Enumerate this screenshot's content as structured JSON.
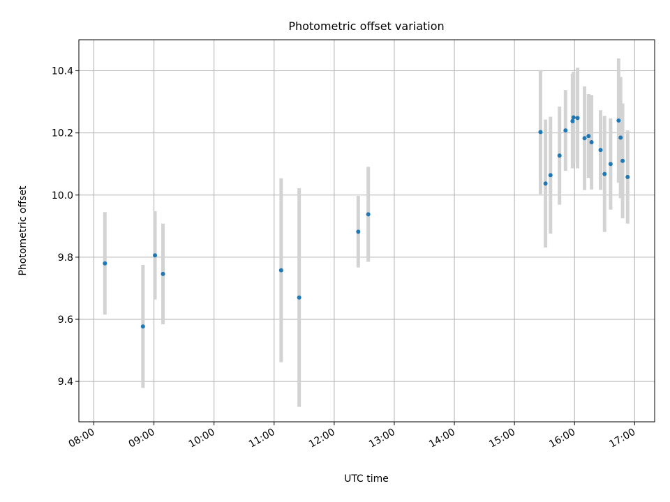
{
  "chart_data": {
    "type": "scatter",
    "title": "Photometric offset variation",
    "xlabel": "UTC time",
    "ylabel": "Photometric offset",
    "x_ticks": [
      "08:00",
      "09:00",
      "10:00",
      "11:00",
      "12:00",
      "13:00",
      "14:00",
      "15:00",
      "16:00",
      "17:00"
    ],
    "y_ticks": [
      "9.4",
      "9.6",
      "9.8",
      "10.0",
      "10.2",
      "10.4"
    ],
    "xlim": [
      "07:45",
      "17:20"
    ],
    "ylim": [
      9.27,
      10.5
    ],
    "grid": true,
    "point_color": "#1f77b4",
    "errorbar_color": "#d3d3d3",
    "points": [
      {
        "x": "08:11",
        "y": 9.78,
        "yerr": 0.165
      },
      {
        "x": "08:49",
        "y": 9.577,
        "yerr": 0.198
      },
      {
        "x": "09:01",
        "y": 9.806,
        "yerr": 0.142
      },
      {
        "x": "09:09",
        "y": 9.746,
        "yerr": 0.162
      },
      {
        "x": "11:07",
        "y": 9.758,
        "yerr": 0.296
      },
      {
        "x": "11:25",
        "y": 9.67,
        "yerr": 0.352
      },
      {
        "x": "12:24",
        "y": 9.882,
        "yerr": 0.115
      },
      {
        "x": "12:34",
        "y": 9.938,
        "yerr": 0.153
      },
      {
        "x": "15:26",
        "y": 10.203,
        "yerr": 0.2
      },
      {
        "x": "15:31",
        "y": 10.037,
        "yerr": 0.206
      },
      {
        "x": "15:36",
        "y": 10.064,
        "yerr": 0.188
      },
      {
        "x": "15:45",
        "y": 10.127,
        "yerr": 0.158
      },
      {
        "x": "15:51",
        "y": 10.208,
        "yerr": 0.13
      },
      {
        "x": "15:58",
        "y": 10.238,
        "yerr": 0.152
      },
      {
        "x": "15:59",
        "y": 10.25,
        "yerr": 0.147
      },
      {
        "x": "16:03",
        "y": 10.248,
        "yerr": 0.162
      },
      {
        "x": "16:10",
        "y": 10.183,
        "yerr": 0.167
      },
      {
        "x": "16:14",
        "y": 10.19,
        "yerr": 0.135
      },
      {
        "x": "16:17",
        "y": 10.17,
        "yerr": 0.152
      },
      {
        "x": "16:26",
        "y": 10.145,
        "yerr": 0.128
      },
      {
        "x": "16:30",
        "y": 10.068,
        "yerr": 0.187
      },
      {
        "x": "16:36",
        "y": 10.1,
        "yerr": 0.147
      },
      {
        "x": "16:44",
        "y": 10.24,
        "yerr": 0.2
      },
      {
        "x": "16:46",
        "y": 10.185,
        "yerr": 0.195
      },
      {
        "x": "16:48",
        "y": 10.11,
        "yerr": 0.185
      },
      {
        "x": "16:53",
        "y": 10.058,
        "yerr": 0.15
      }
    ]
  }
}
